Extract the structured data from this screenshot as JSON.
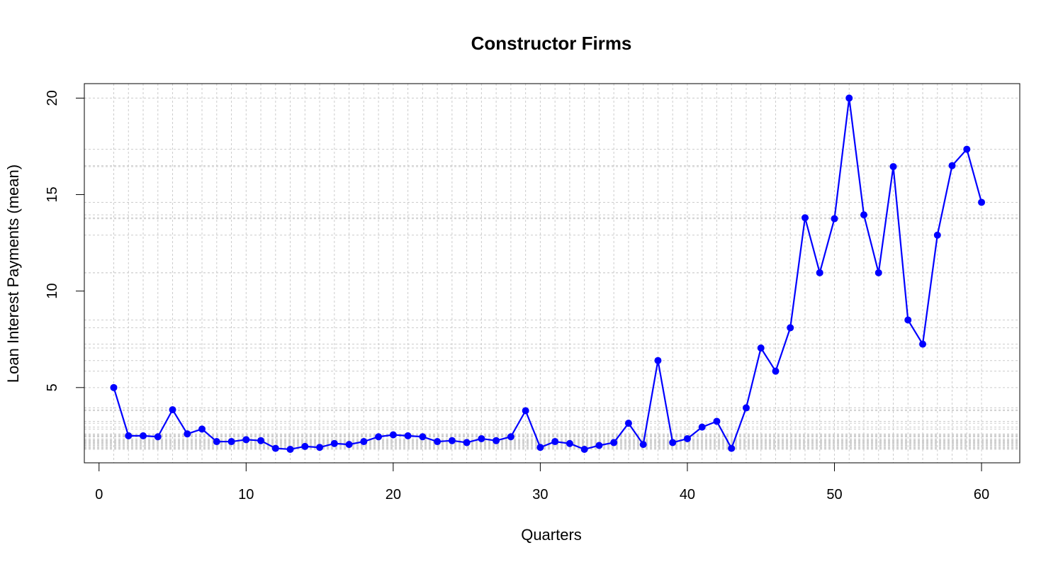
{
  "chart_data": {
    "type": "line",
    "title": "Constructor Firms",
    "xlabel": "Quarters",
    "ylabel": "Loan Interest Payments (mean)",
    "xlim": [
      -1,
      62.6
    ],
    "ylim": [
      1.1,
      20.75
    ],
    "xticks": [
      0,
      10,
      20,
      30,
      40,
      50,
      60
    ],
    "yticks": [
      5,
      10,
      15,
      20
    ],
    "grid": true,
    "colors": {
      "series": "#0000ff",
      "grid": "#cccccc",
      "axis": "#000000"
    },
    "series": [
      {
        "x": [
          1,
          2,
          3,
          4,
          5,
          6,
          7,
          8,
          9,
          10,
          11,
          12,
          13,
          14,
          15,
          16,
          17,
          18,
          19,
          20,
          21,
          22,
          23,
          24,
          25,
          26,
          27,
          28,
          29,
          30,
          31,
          32,
          33,
          34,
          35,
          36,
          37,
          38,
          39,
          40,
          41,
          42,
          43,
          44,
          45,
          46,
          47,
          48,
          49,
          50,
          51,
          52,
          53,
          54,
          55,
          56,
          57,
          58,
          59,
          60
        ],
        "values": [
          5.0,
          2.5,
          2.5,
          2.45,
          3.85,
          2.6,
          2.85,
          2.2,
          2.2,
          2.3,
          2.25,
          1.85,
          1.8,
          1.95,
          1.9,
          2.1,
          2.05,
          2.2,
          2.45,
          2.55,
          2.5,
          2.45,
          2.2,
          2.25,
          2.15,
          2.35,
          2.25,
          2.45,
          3.8,
          1.9,
          2.2,
          2.1,
          1.8,
          2.0,
          2.15,
          3.15,
          2.05,
          6.4,
          2.15,
          2.35,
          2.95,
          3.25,
          1.85,
          3.95,
          7.05,
          5.85,
          8.1,
          13.8,
          10.95,
          13.75,
          20.0,
          13.95,
          10.95,
          16.45,
          8.5,
          7.25,
          12.9,
          16.5,
          17.35,
          14.6
        ]
      }
    ]
  }
}
